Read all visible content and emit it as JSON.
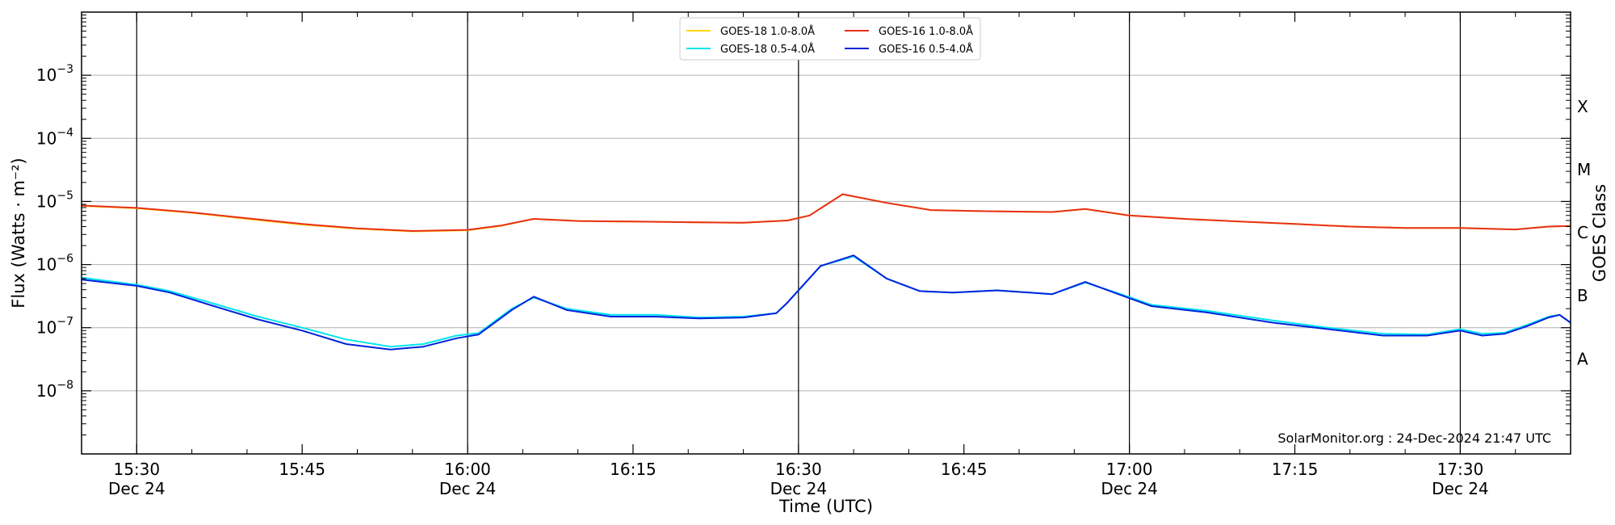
{
  "chart_data": {
    "type": "line",
    "xlabel": "Time (UTC)",
    "ylabel": "Flux (Watts · m⁻²)",
    "ylabel_right": "GOES Class",
    "yscale": "log",
    "xlim": [
      "15:25",
      "17:40"
    ],
    "ylim": [
      1e-09,
      0.01
    ],
    "x_ticks": [
      {
        "time": "15:30",
        "label": "15:30",
        "sublabel": "Dec 24"
      },
      {
        "time": "15:45",
        "label": "15:45",
        "sublabel": ""
      },
      {
        "time": "16:00",
        "label": "16:00",
        "sublabel": "Dec 24"
      },
      {
        "time": "16:15",
        "label": "16:15",
        "sublabel": ""
      },
      {
        "time": "16:30",
        "label": "16:30",
        "sublabel": "Dec 24"
      },
      {
        "time": "16:45",
        "label": "16:45",
        "sublabel": ""
      },
      {
        "time": "17:00",
        "label": "17:00",
        "sublabel": "Dec 24"
      },
      {
        "time": "17:15",
        "label": "17:15",
        "sublabel": ""
      },
      {
        "time": "17:30",
        "label": "17:30",
        "sublabel": "Dec 24"
      }
    ],
    "day_lines": [
      "15:30",
      "16:00",
      "16:30",
      "17:00",
      "17:30"
    ],
    "y_ticks": [
      {
        "value": 1e-08,
        "base": "10",
        "exp": "−8"
      },
      {
        "value": 1e-07,
        "base": "10",
        "exp": "−7"
      },
      {
        "value": 1e-06,
        "base": "10",
        "exp": "−6"
      },
      {
        "value": 1e-05,
        "base": "10",
        "exp": "−5"
      },
      {
        "value": 0.0001,
        "base": "10",
        "exp": "−4"
      },
      {
        "value": 0.001,
        "base": "10",
        "exp": "−3"
      }
    ],
    "goes_classes": [
      {
        "label": "A",
        "value": 3.2e-08
      },
      {
        "label": "B",
        "value": 3.2e-07
      },
      {
        "label": "C",
        "value": 3.2e-06
      },
      {
        "label": "M",
        "value": 3.2e-05
      },
      {
        "label": "X",
        "value": 0.00032
      }
    ],
    "grid": true,
    "legend_position": "top-center",
    "legend": [
      {
        "name": "GOES-18 1.0-8.0Å",
        "color": "#FFD700"
      },
      {
        "name": "GOES-18 0.5-4.0Å",
        "color": "#00E5EE"
      },
      {
        "name": "GOES-16 1.0-8.0Å",
        "color": "#E8301A"
      },
      {
        "name": "GOES-16 0.5-4.0Å",
        "color": "#0022DD"
      }
    ],
    "series": [
      {
        "name": "GOES-18 1.0-8.0Å",
        "color": "#FFD700",
        "x": [
          "15:25",
          "15:30",
          "15:35",
          "15:40",
          "15:45",
          "15:50",
          "15:55",
          "16:00",
          "16:03",
          "16:06",
          "16:10",
          "16:15",
          "16:20",
          "16:25",
          "16:29",
          "16:31",
          "16:34",
          "16:38",
          "16:42",
          "16:47",
          "16:53",
          "16:56",
          "17:00",
          "17:05",
          "17:10",
          "17:15",
          "17:20",
          "17:25",
          "17:30",
          "17:35",
          "17:38",
          "17:40"
        ],
        "y": [
          8.5e-06,
          7.8e-06,
          6.6e-06,
          5.3e-06,
          4.3e-06,
          3.7e-06,
          3.35e-06,
          3.5e-06,
          4.1e-06,
          5.3e-06,
          4.9e-06,
          4.8e-06,
          4.7e-06,
          4.6e-06,
          5e-06,
          6e-06,
          1.3e-05,
          9.5e-06,
          7.3e-06,
          7e-06,
          6.8e-06,
          7.6e-06,
          6e-06,
          5.3e-06,
          4.8e-06,
          4.4e-06,
          4e-06,
          3.8e-06,
          3.8e-06,
          3.6e-06,
          4e-06,
          4.1e-06
        ]
      },
      {
        "name": "GOES-16 1.0-8.0Å",
        "color": "#E8301A",
        "x": [
          "15:25",
          "15:30",
          "15:35",
          "15:40",
          "15:45",
          "15:50",
          "15:55",
          "16:00",
          "16:03",
          "16:06",
          "16:10",
          "16:15",
          "16:20",
          "16:25",
          "16:29",
          "16:31",
          "16:34",
          "16:38",
          "16:42",
          "16:47",
          "16:53",
          "16:56",
          "17:00",
          "17:05",
          "17:10",
          "17:15",
          "17:20",
          "17:25",
          "17:30",
          "17:35",
          "17:38",
          "17:40"
        ],
        "y": [
          8.6e-06,
          7.9e-06,
          6.7e-06,
          5.4e-06,
          4.4e-06,
          3.75e-06,
          3.4e-06,
          3.55e-06,
          4.15e-06,
          5.3e-06,
          4.9e-06,
          4.8e-06,
          4.7e-06,
          4.6e-06,
          5e-06,
          6e-06,
          1.3e-05,
          9.5e-06,
          7.3e-06,
          7e-06,
          6.8e-06,
          7.6e-06,
          6e-06,
          5.3e-06,
          4.8e-06,
          4.4e-06,
          4e-06,
          3.8e-06,
          3.8e-06,
          3.6e-06,
          4e-06,
          4.1e-06
        ]
      },
      {
        "name": "GOES-18 0.5-4.0Å",
        "color": "#00E5EE",
        "x": [
          "15:25",
          "15:30",
          "15:33",
          "15:37",
          "15:41",
          "15:45",
          "15:49",
          "15:53",
          "15:56",
          "15:59",
          "16:01",
          "16:04",
          "16:06",
          "16:09",
          "16:13",
          "16:17",
          "16:21",
          "16:25",
          "16:28",
          "16:29",
          "16:32",
          "16:35",
          "16:38",
          "16:41",
          "16:44",
          "16:48",
          "16:53",
          "16:56",
          "16:59",
          "17:02",
          "17:07",
          "17:13",
          "17:18",
          "17:23",
          "17:27",
          "17:30",
          "17:32",
          "17:34",
          "17:36",
          "17:38",
          "17:39",
          "17:40"
        ],
        "y": [
          6.2e-07,
          4.8e-07,
          3.8e-07,
          2.4e-07,
          1.5e-07,
          1e-07,
          6.5e-08,
          5e-08,
          5.5e-08,
          7.5e-08,
          8.2e-08,
          2e-07,
          3e-07,
          2e-07,
          1.6e-07,
          1.6e-07,
          1.45e-07,
          1.5e-07,
          1.7e-07,
          2.5e-07,
          9.5e-07,
          1.35e-06,
          6e-07,
          3.8e-07,
          3.6e-07,
          3.9e-07,
          3.4e-07,
          5.2e-07,
          3.5e-07,
          2.3e-07,
          1.85e-07,
          1.3e-07,
          1e-07,
          8e-08,
          7.8e-08,
          9.5e-08,
          8e-08,
          8.3e-08,
          1.1e-07,
          1.5e-07,
          1.6e-07,
          1.2e-07
        ]
      },
      {
        "name": "GOES-16 0.5-4.0Å",
        "color": "#0022DD",
        "x": [
          "15:25",
          "15:30",
          "15:33",
          "15:37",
          "15:41",
          "15:45",
          "15:49",
          "15:53",
          "15:56",
          "15:59",
          "16:01",
          "16:04",
          "16:06",
          "16:09",
          "16:13",
          "16:17",
          "16:21",
          "16:25",
          "16:28",
          "16:29",
          "16:32",
          "16:35",
          "16:38",
          "16:41",
          "16:44",
          "16:48",
          "16:53",
          "16:56",
          "16:59",
          "17:02",
          "17:07",
          "17:13",
          "17:18",
          "17:23",
          "17:27",
          "17:30",
          "17:32",
          "17:34",
          "17:36",
          "17:38",
          "17:39",
          "17:40"
        ],
        "y": [
          5.8e-07,
          4.6e-07,
          3.6e-07,
          2.2e-07,
          1.35e-07,
          9e-08,
          5.5e-08,
          4.5e-08,
          5e-08,
          6.8e-08,
          7.8e-08,
          1.9e-07,
          3.1e-07,
          1.9e-07,
          1.5e-07,
          1.5e-07,
          1.4e-07,
          1.45e-07,
          1.7e-07,
          2.5e-07,
          9.5e-07,
          1.4e-06,
          6e-07,
          3.8e-07,
          3.6e-07,
          3.9e-07,
          3.4e-07,
          5.3e-07,
          3.4e-07,
          2.2e-07,
          1.75e-07,
          1.2e-07,
          9.5e-08,
          7.5e-08,
          7.5e-08,
          9e-08,
          7.5e-08,
          8e-08,
          1.05e-07,
          1.45e-07,
          1.6e-07,
          1.2e-07
        ]
      }
    ],
    "annotation": "SolarMonitor.org : 24-Dec-2024 21:47 UTC"
  }
}
